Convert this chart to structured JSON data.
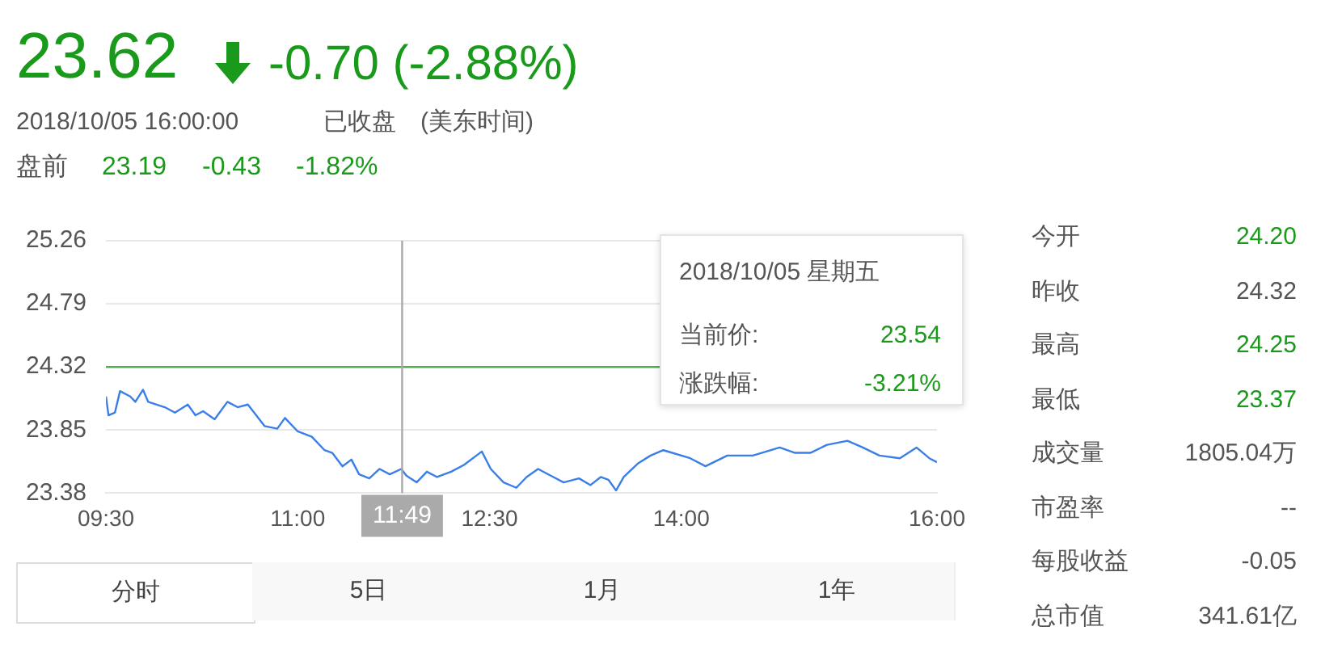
{
  "chart_data": {
    "type": "line",
    "x": [
      9.5,
      9.52,
      9.57,
      9.61,
      9.69,
      9.73,
      9.79,
      9.83,
      9.96,
      10.04,
      10.14,
      10.2,
      10.26,
      10.35,
      10.45,
      10.53,
      10.61,
      10.74,
      10.84,
      10.9,
      11.0,
      11.11,
      11.21,
      11.27,
      11.35,
      11.42,
      11.48,
      11.56,
      11.64,
      11.72,
      11.81,
      11.85,
      11.93,
      12.01,
      12.09,
      12.2,
      12.3,
      12.44,
      12.51,
      12.61,
      12.71,
      12.79,
      12.88,
      13.0,
      13.08,
      13.2,
      13.29,
      13.37,
      13.43,
      13.49,
      13.55,
      13.66,
      13.76,
      13.86,
      14.07,
      14.19,
      14.36,
      14.56,
      14.77,
      14.89,
      15.01,
      15.14,
      15.3,
      15.42,
      15.55,
      15.71,
      15.84,
      15.94,
      16.0
    ],
    "series": [
      {
        "color": "#3a7ee8",
        "values": [
          24.1,
          23.96,
          23.98,
          24.14,
          24.1,
          24.06,
          24.15,
          24.06,
          24.02,
          23.98,
          24.04,
          23.96,
          23.99,
          23.93,
          24.06,
          24.02,
          24.04,
          23.88,
          23.86,
          23.94,
          23.84,
          23.8,
          23.7,
          23.68,
          23.58,
          23.63,
          23.52,
          23.49,
          23.56,
          23.52,
          23.56,
          23.51,
          23.46,
          23.54,
          23.5,
          23.54,
          23.59,
          23.69,
          23.56,
          23.46,
          23.42,
          23.5,
          23.56,
          23.5,
          23.46,
          23.49,
          23.44,
          23.5,
          23.48,
          23.4,
          23.5,
          23.6,
          23.66,
          23.7,
          23.64,
          23.58,
          23.66,
          23.66,
          23.72,
          23.68,
          23.68,
          23.74,
          23.77,
          23.72,
          23.66,
          23.64,
          23.72,
          23.64,
          23.61
        ]
      }
    ],
    "xlim": [
      9.5,
      16
    ],
    "xticks": [
      {
        "value": 9.5,
        "label": "09:30"
      },
      {
        "value": 11,
        "label": "11:00"
      },
      {
        "value": 12.5,
        "label": "12:30"
      },
      {
        "value": 14,
        "label": "14:00"
      },
      {
        "value": 16,
        "label": "16:00"
      }
    ],
    "ylim": [
      23.38,
      25.26
    ],
    "yticks": [
      23.38,
      23.85,
      24.32,
      24.79,
      25.26
    ],
    "grid": "y",
    "legend": false,
    "marker": "none",
    "line_style": "solid",
    "ref_lines": [
      {
        "axis": "y",
        "value": 24.32,
        "label": null,
        "color": "#4caf50"
      },
      {
        "axis": "x",
        "value": 11.8167,
        "label": null,
        "color": "#aaaaaa"
      }
    ],
    "annotations": [
      "23.62",
      "-0.70 (-2.88%)",
      "2018/10/05 16:00:00",
      "已收盘",
      "(美东时间)",
      "盘前",
      "23.19",
      "-0.43",
      "-1.82%",
      "今开",
      "24.20",
      "昨收",
      "24.32",
      "最高",
      "24.25",
      "最低",
      "23.37",
      "成交量",
      "1805.04万",
      "市盈率",
      "--",
      "每股收益",
      "-0.05",
      "总市值",
      "341.61亿",
      "2018/10/05 星期五",
      "当前价:",
      "23.54",
      "涨跌幅:",
      "-3.21%",
      "分时",
      "5日",
      "1月",
      "1年",
      "11:49"
    ]
  }
}
